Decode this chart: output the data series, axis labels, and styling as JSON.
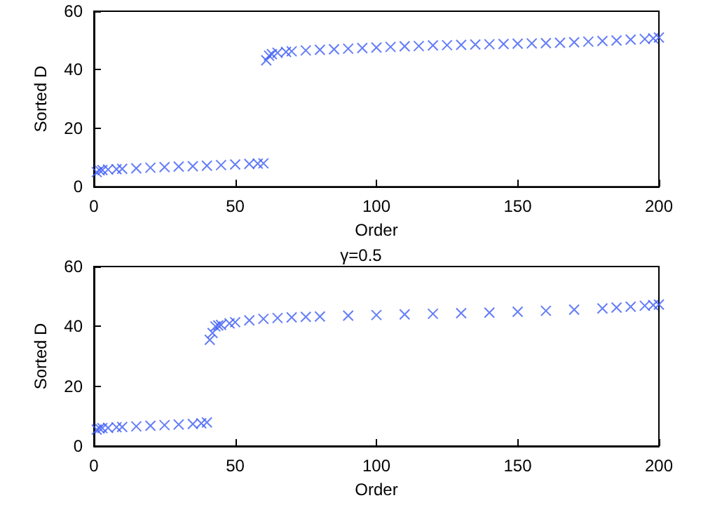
{
  "chart_data": [
    {
      "type": "scatter",
      "xlabel": "Order",
      "ylabel": "Sorted D",
      "marker": "cross",
      "color": "#3d5cf5",
      "xlim": [
        0,
        200
      ],
      "ylim": [
        0,
        60
      ],
      "xticks": [
        0,
        50,
        100,
        150,
        200
      ],
      "yticks": [
        0,
        20,
        40,
        60
      ],
      "x": [
        1,
        2,
        3,
        5,
        8,
        10,
        15,
        20,
        25,
        30,
        35,
        40,
        45,
        50,
        55,
        58,
        60,
        61,
        62,
        63,
        65,
        68,
        70,
        75,
        80,
        85,
        90,
        95,
        100,
        105,
        110,
        115,
        120,
        125,
        130,
        135,
        140,
        145,
        150,
        155,
        160,
        165,
        170,
        175,
        180,
        185,
        190,
        195,
        198,
        200
      ],
      "values": [
        5,
        5.6,
        5.7,
        5.9,
        6,
        6.1,
        6.3,
        6.5,
        6.7,
        6.9,
        7,
        7.2,
        7.4,
        7.6,
        7.8,
        7.9,
        8,
        43.2,
        44.8,
        45.3,
        45.8,
        46.1,
        46.3,
        46.6,
        46.8,
        47,
        47.2,
        47.4,
        47.6,
        47.8,
        48,
        48.1,
        48.3,
        48.4,
        48.5,
        48.6,
        48.7,
        48.8,
        48.9,
        49,
        49.1,
        49.2,
        49.4,
        49.6,
        49.8,
        50,
        50.3,
        50.5,
        50.7,
        51
      ]
    },
    {
      "type": "scatter",
      "title": "γ=0.5",
      "xlabel": "Order",
      "ylabel": "Sorted D",
      "marker": "cross",
      "color": "#3d5cf5",
      "xlim": [
        0,
        200
      ],
      "ylim": [
        0,
        60
      ],
      "xticks": [
        0,
        50,
        100,
        150,
        200
      ],
      "yticks": [
        0,
        20,
        40,
        60
      ],
      "x": [
        1,
        2,
        3,
        5,
        8,
        10,
        15,
        20,
        25,
        30,
        35,
        38,
        40,
        41,
        42,
        43,
        44,
        45,
        48,
        50,
        55,
        60,
        65,
        70,
        75,
        80,
        90,
        100,
        110,
        120,
        130,
        140,
        150,
        160,
        170,
        180,
        185,
        190,
        195,
        198,
        200
      ],
      "values": [
        5.5,
        5.9,
        6,
        6.1,
        6.3,
        6.4,
        6.6,
        6.8,
        7,
        7.2,
        7.4,
        7.6,
        7.9,
        35.5,
        37.8,
        40,
        40.3,
        40.5,
        41,
        41.4,
        42,
        42.5,
        42.8,
        43,
        43.2,
        43.3,
        43.6,
        43.8,
        44,
        44.2,
        44.4,
        44.6,
        44.9,
        45.2,
        45.6,
        46,
        46.3,
        46.6,
        46.9,
        47.1,
        47.3
      ]
    }
  ]
}
